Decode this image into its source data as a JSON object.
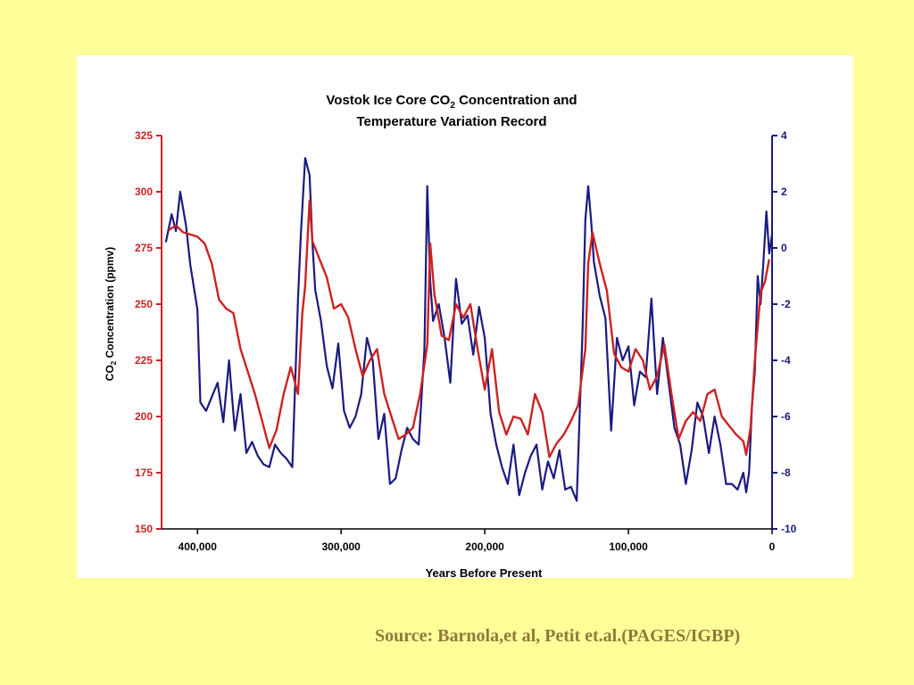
{
  "source": "Source: Barnola,et al, Petit et.al.(PAGES/IGBP)",
  "chart_data": {
    "type": "line",
    "title_line1_prefix": "Vostok Ice Core CO",
    "title_line1_sub": "2",
    "title_line1_suffix": " Concentration and",
    "title_line2": "Temperature Variation Record",
    "xlabel": "Years Before Present",
    "ylabel_prefix": "CO",
    "ylabel_sub": "2",
    "ylabel_suffix": " Concentration (ppmv)",
    "xlim": [
      425000,
      0
    ],
    "ylim_left": [
      150,
      325
    ],
    "ylim_right": [
      -10,
      4
    ],
    "x_ticks": [
      400000,
      300000,
      200000,
      100000,
      0
    ],
    "x_tick_labels": [
      "400,000",
      "300,000",
      "200,000",
      "100,000",
      "0"
    ],
    "y_left_ticks": [
      150,
      175,
      200,
      225,
      250,
      275,
      300,
      325
    ],
    "y_left_tick_labels": [
      "150",
      "175",
      "200",
      "225",
      "250",
      "275",
      "300",
      "325"
    ],
    "y_right_ticks": [
      -10,
      -8,
      -6,
      -4,
      -2,
      0,
      2,
      4
    ],
    "y_right_tick_labels": [
      "-10",
      "-8",
      "-6",
      "-4",
      "-2",
      "0",
      "2",
      "4"
    ],
    "colors": {
      "co2": "#cc2222",
      "temperature": "#1a1a80",
      "left_axis": "#cc2222",
      "right_axis": "#1a1a80",
      "background": "#ffff99"
    },
    "series": [
      {
        "key": "co2",
        "axis": "left",
        "x": [
          420000,
          415000,
          410000,
          405000,
          400000,
          395000,
          390000,
          385000,
          380000,
          375000,
          370000,
          365000,
          360000,
          355000,
          350000,
          345000,
          340000,
          335000,
          330000,
          327000,
          325000,
          322000,
          320000,
          315000,
          310000,
          305000,
          300000,
          295000,
          290000,
          285000,
          280000,
          275000,
          270000,
          265000,
          260000,
          255000,
          250000,
          245000,
          240000,
          238000,
          235000,
          230000,
          225000,
          220000,
          215000,
          210000,
          205000,
          200000,
          195000,
          190000,
          185000,
          180000,
          175000,
          170000,
          165000,
          160000,
          155000,
          150000,
          145000,
          140000,
          135000,
          130000,
          128000,
          125000,
          120000,
          115000,
          110000,
          105000,
          100000,
          95000,
          90000,
          85000,
          80000,
          75000,
          70000,
          65000,
          60000,
          55000,
          50000,
          45000,
          40000,
          35000,
          30000,
          25000,
          20000,
          18000,
          15000,
          12000,
          10000,
          8000,
          5000,
          2000
        ],
        "values": [
          283,
          285,
          282,
          281,
          280,
          277,
          268,
          252,
          248,
          246,
          230,
          220,
          210,
          198,
          186,
          194,
          210,
          222,
          210,
          246,
          258,
          296,
          278,
          270,
          262,
          248,
          250,
          244,
          230,
          218,
          225,
          230,
          210,
          200,
          190,
          192,
          195,
          210,
          232,
          277,
          254,
          236,
          234,
          250,
          244,
          250,
          230,
          212,
          230,
          202,
          192,
          200,
          199,
          192,
          210,
          202,
          182,
          188,
          192,
          198,
          205,
          230,
          268,
          282,
          268,
          256,
          228,
          222,
          220,
          230,
          225,
          212,
          218,
          232,
          210,
          190,
          198,
          202,
          198,
          210,
          212,
          200,
          196,
          192,
          189,
          183,
          195,
          225,
          240,
          255,
          260,
          270
        ]
      },
      {
        "key": "temperature",
        "axis": "right",
        "x": [
          422000,
          418000,
          415000,
          412000,
          408000,
          405000,
          400000,
          398000,
          394000,
          390000,
          386000,
          382000,
          378000,
          374000,
          370000,
          366000,
          362000,
          358000,
          354000,
          350000,
          346000,
          342000,
          338000,
          334000,
          330000,
          328000,
          325000,
          322000,
          320000,
          318000,
          314000,
          310000,
          306000,
          302000,
          298000,
          294000,
          290000,
          286000,
          282000,
          278000,
          274000,
          270000,
          266000,
          262000,
          258000,
          254000,
          250000,
          246000,
          242000,
          240000,
          238000,
          236000,
          232000,
          228000,
          224000,
          220000,
          216000,
          212000,
          208000,
          204000,
          200000,
          196000,
          192000,
          188000,
          184000,
          180000,
          176000,
          172000,
          168000,
          164000,
          160000,
          156000,
          152000,
          148000,
          144000,
          140000,
          136000,
          132000,
          130000,
          128000,
          126000,
          124000,
          120000,
          116000,
          112000,
          108000,
          104000,
          100000,
          96000,
          92000,
          88000,
          84000,
          80000,
          76000,
          72000,
          68000,
          64000,
          60000,
          56000,
          52000,
          48000,
          44000,
          40000,
          36000,
          32000,
          28000,
          24000,
          20000,
          18000,
          16000,
          14000,
          12000,
          10000,
          8000,
          6000,
          4000,
          2000,
          0
        ],
        "values": [
          0.2,
          1.2,
          0.6,
          2.0,
          0.8,
          -0.6,
          -2.2,
          -5.5,
          -5.8,
          -5.3,
          -4.8,
          -6.2,
          -4.0,
          -6.5,
          -5.2,
          -7.3,
          -6.9,
          -7.4,
          -7.7,
          -7.8,
          -7.0,
          -7.3,
          -7.5,
          -7.8,
          -1.8,
          0.5,
          3.2,
          2.6,
          0.2,
          -1.5,
          -2.6,
          -4.2,
          -5.0,
          -3.4,
          -5.8,
          -6.4,
          -6.0,
          -5.2,
          -3.2,
          -4.0,
          -6.8,
          -5.9,
          -8.4,
          -8.2,
          -7.2,
          -6.4,
          -6.8,
          -7.0,
          -3.6,
          2.2,
          -1.2,
          -2.6,
          -2.0,
          -3.2,
          -4.8,
          -1.1,
          -2.7,
          -2.4,
          -3.8,
          -2.1,
          -3.2,
          -5.9,
          -7.0,
          -7.8,
          -8.4,
          -7.0,
          -8.8,
          -8.0,
          -7.4,
          -7.0,
          -8.6,
          -7.6,
          -8.2,
          -7.2,
          -8.6,
          -8.5,
          -9.0,
          -3.0,
          1.0,
          2.2,
          1.0,
          -0.5,
          -1.7,
          -2.5,
          -6.5,
          -3.2,
          -4.0,
          -3.5,
          -5.6,
          -4.4,
          -4.6,
          -1.8,
          -5.2,
          -3.2,
          -4.8,
          -6.4,
          -7.0,
          -8.4,
          -7.2,
          -5.5,
          -6.0,
          -7.3,
          -6.0,
          -7.0,
          -8.4,
          -8.4,
          -8.6,
          -8.0,
          -8.7,
          -8.0,
          -5.6,
          -4.4,
          -1.0,
          -2.0,
          -0.5,
          1.3,
          -0.2,
          0.5
        ]
      }
    ]
  }
}
